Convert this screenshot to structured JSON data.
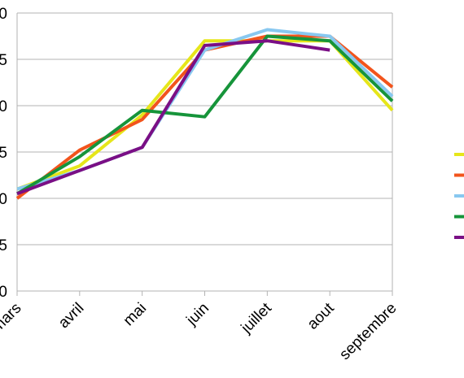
{
  "chart_data": {
    "type": "line",
    "categories": [
      "mars",
      "avril",
      "mai",
      "juin",
      "juillet",
      "aout",
      "septembre"
    ],
    "y_tick_labels": [
      "0",
      "5",
      "0",
      "5",
      "0",
      "5",
      "0"
    ],
    "ylim": [
      0,
      30
    ],
    "y_tick_step": 5,
    "grid": "horizontal",
    "legend_position": "right",
    "series": [
      {
        "color": "#e6e61a",
        "values": [
          11,
          13.5,
          19,
          27,
          27,
          27,
          19.5
        ]
      },
      {
        "color": "#f2541c",
        "values": [
          10,
          15.2,
          18.5,
          26,
          27.5,
          27.5,
          22
        ]
      },
      {
        "color": "#88c8f0",
        "values": [
          11,
          13,
          15.5,
          26,
          28.2,
          27.5,
          21
        ]
      },
      {
        "color": "#16943a",
        "values": [
          10.5,
          14.5,
          19.5,
          18.8,
          27.5,
          27,
          20.5
        ]
      },
      {
        "color": "#7a0f85",
        "values": [
          10.5,
          13,
          15.5,
          26.5,
          27,
          26,
          null
        ]
      }
    ]
  }
}
